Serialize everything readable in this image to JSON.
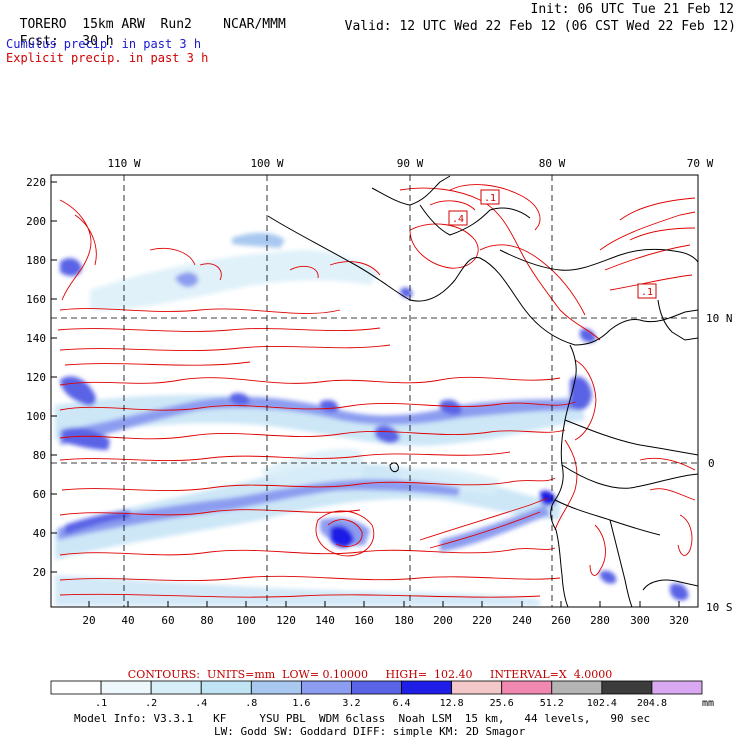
{
  "header": {
    "model": "TORERO  15km ARW",
    "run": "Run2",
    "org": "NCAR/MMM",
    "init": "Init: 06 UTC Tue 21 Feb 12",
    "fcst_label": "Fcst:",
    "fcst_value": "30 h",
    "valid": "Valid: 12 UTC Wed 22 Feb 12 (06 CST Wed 22 Feb 12)"
  },
  "legend_lines": {
    "cumulus": "Cumulus precip. in past 3 h",
    "explicit": "Explicit precip. in past 3 h"
  },
  "colors": {
    "cumulus_text": "#1a1ad0",
    "explicit_text": "#d00000",
    "contour": "#e00000",
    "grid": "#000000"
  },
  "map": {
    "lon_labels": [
      "110 W",
      "100 W",
      "90 W",
      "80 W",
      "70 W"
    ],
    "lat_labels": [
      "10 N",
      "0",
      "10 S"
    ],
    "y_ticks": [
      "220",
      "200",
      "180",
      "160",
      "140",
      "120",
      "100",
      "80",
      "60",
      "40",
      "20"
    ],
    "x_ticks": [
      "20",
      "40",
      "60",
      "80",
      "100",
      "120",
      "140",
      "160",
      "180",
      "200",
      "220",
      "240",
      "260",
      "280",
      "300",
      "320"
    ],
    "max_labels": [
      ".1",
      ".4",
      ".1"
    ]
  },
  "contours_info": "CONTOURS:  UNITS=mm  LOW= 0.10000     HIGH=  102.40     INTERVAL=X  4.0000",
  "colorbar": {
    "colors": [
      "#ffffff",
      "#eef8fc",
      "#d8eef8",
      "#c0e4f4",
      "#a8c8f0",
      "#8c9cf0",
      "#5a64e6",
      "#1e1ee6",
      "#f4c8c8",
      "#f088b0",
      "#b4b4b4",
      "#3c3c3c",
      "#d8a8f0"
    ],
    "labels": [
      ".1",
      ".2",
      ".4",
      ".8",
      "1.6",
      "3.2",
      "6.4",
      "12.8",
      "25.6",
      "51.2",
      "102.4",
      "204.8"
    ],
    "units": "mm"
  },
  "model_info": {
    "line1": "Model Info: V3.3.1   KF     YSU PBL  WDM 6class  Noah LSM  15 km,   44 levels,   90 sec",
    "line2": "LW: Godd SW: Goddard DIFF: simple KM: 2D Smagor"
  }
}
